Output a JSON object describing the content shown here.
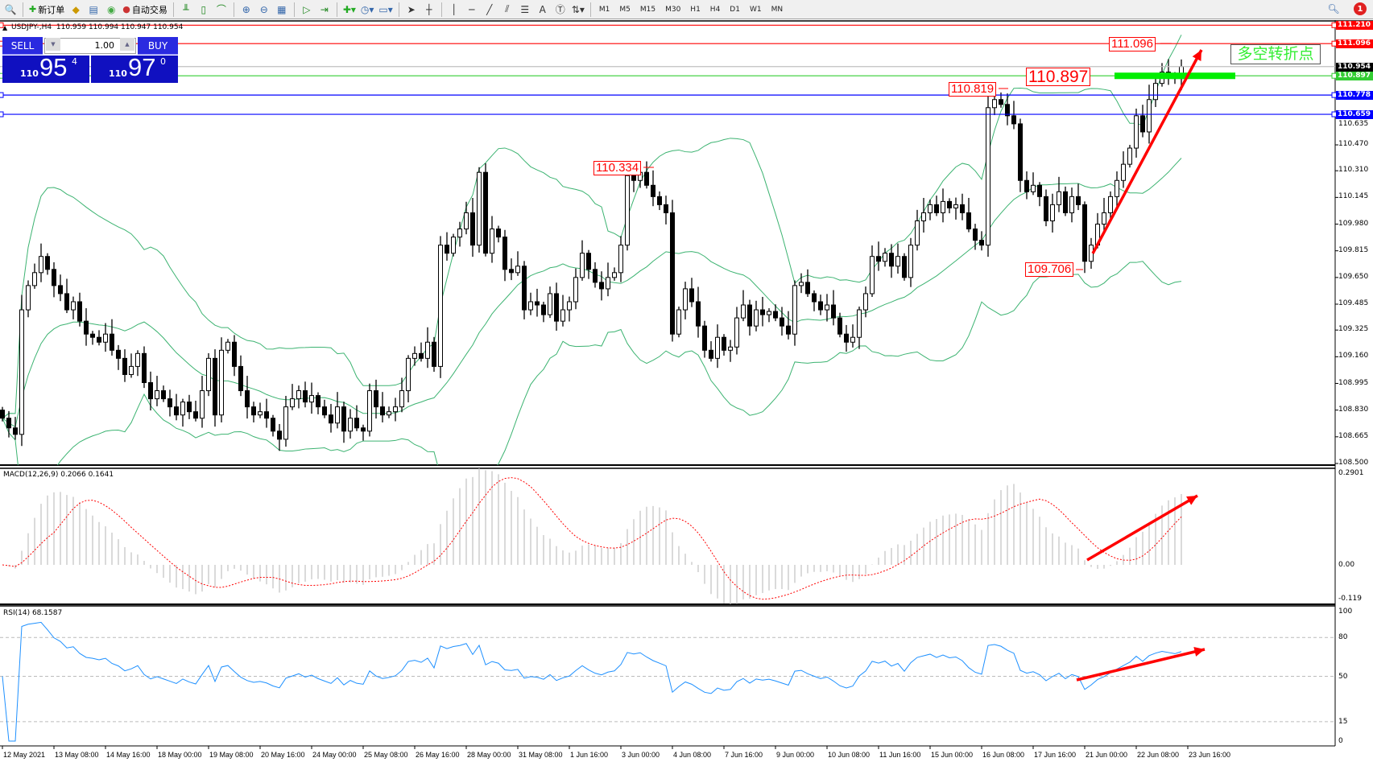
{
  "toolbar": {
    "new_order": "新订单",
    "auto_trading": "自动交易",
    "text_tool": "A",
    "timeframes": [
      "M1",
      "M5",
      "M15",
      "M30",
      "H1",
      "H4",
      "D1",
      "W1",
      "MN"
    ],
    "notification_count": "1"
  },
  "chart": {
    "header": "USDJPY-,H4  110.959 110.994 110.947 110.954"
  },
  "trade_panel": {
    "sell_label": "SELL",
    "buy_label": "BUY",
    "lot": "1.00",
    "sell_big_figure": "110",
    "sell_pips": "95",
    "sell_fraction": "4",
    "buy_big_figure": "110",
    "buy_pips": "97",
    "buy_fraction": "0"
  },
  "annotation": "多空转折点",
  "price_labels": {
    "high_1": "110.334",
    "high_2": "110.819",
    "level": "110.897",
    "high_3": "111.096",
    "low_1": "109.706"
  },
  "indicators": {
    "macd_label": "MACD(12,26,9) 0.2066 0.1641",
    "rsi_label": "RSI(14) 68.1587"
  },
  "chart_data": {
    "type": "candlestick",
    "symbol": "USDJPY-",
    "timeframe": "H4",
    "closes": [
      108.78,
      108.72,
      108.68,
      109.45,
      109.6,
      109.68,
      109.78,
      109.7,
      109.6,
      109.55,
      109.45,
      109.5,
      109.38,
      109.3,
      109.28,
      109.25,
      109.3,
      109.2,
      109.15,
      109.05,
      109.1,
      109.18,
      109.0,
      108.9,
      108.95,
      108.9,
      108.85,
      108.8,
      108.88,
      108.82,
      108.78,
      108.95,
      109.15,
      108.8,
      109.2,
      109.25,
      109.1,
      108.95,
      108.85,
      108.8,
      108.82,
      108.78,
      108.7,
      108.65,
      108.85,
      108.9,
      108.95,
      108.88,
      108.92,
      108.85,
      108.8,
      108.75,
      108.85,
      108.7,
      108.78,
      108.72,
      108.7,
      108.95,
      108.85,
      108.8,
      108.82,
      108.85,
      108.95,
      109.15,
      109.18,
      109.15,
      109.25,
      109.1,
      109.85,
      109.8,
      109.9,
      109.95,
      110.05,
      109.85,
      110.3,
      109.8,
      109.95,
      109.9,
      109.7,
      109.68,
      109.72,
      109.45,
      109.5,
      109.48,
      109.42,
      109.55,
      109.38,
      109.45,
      109.5,
      109.65,
      109.8,
      109.7,
      109.62,
      109.58,
      109.65,
      109.68,
      109.85,
      110.28,
      110.25,
      110.3,
      110.22,
      110.15,
      110.1,
      110.05,
      109.3,
      109.45,
      109.58,
      109.5,
      109.35,
      109.2,
      109.15,
      109.28,
      109.2,
      109.22,
      109.4,
      109.48,
      109.35,
      109.45,
      109.42,
      109.44,
      109.4,
      109.35,
      109.3,
      109.6,
      109.62,
      109.55,
      109.5,
      109.45,
      109.48,
      109.4,
      109.3,
      109.25,
      109.28,
      109.45,
      109.55,
      109.78,
      109.75,
      109.8,
      109.72,
      109.78,
      109.65,
      109.85,
      110.0,
      110.05,
      110.1,
      110.05,
      110.12,
      110.08,
      110.1,
      110.05,
      109.95,
      109.88,
      109.85,
      110.7,
      110.75,
      110.72,
      110.65,
      110.6,
      110.25,
      110.18,
      110.22,
      110.15,
      110.0,
      110.1,
      110.18,
      110.05,
      110.15,
      110.1,
      109.75,
      109.85,
      109.98,
      110.05,
      110.15,
      110.25,
      110.35,
      110.45,
      110.65,
      110.55,
      110.75,
      110.85,
      110.92,
      110.9,
      110.88,
      110.954
    ],
    "x_labels": [
      "12 May 2021",
      "13 May 08:00",
      "14 May 16:00",
      "18 May 00:00",
      "19 May 08:00",
      "20 May 16:00",
      "24 May 00:00",
      "25 May 08:00",
      "26 May 16:00",
      "28 May 00:00",
      "31 May 08:00",
      "1 Jun 16:00",
      "3 Jun 00:00",
      "4 Jun 08:00",
      "7 Jun 16:00",
      "9 Jun 00:00",
      "10 Jun 08:00",
      "11 Jun 16:00",
      "15 Jun 00:00",
      "16 Jun 08:00",
      "17 Jun 16:00",
      "21 Jun 00:00",
      "22 Jun 08:00",
      "23 Jun 16:00"
    ],
    "y_ticks": [
      "110.635",
      "110.470",
      "110.310",
      "110.145",
      "109.980",
      "109.815",
      "109.650",
      "109.485",
      "109.325",
      "109.160",
      "108.995",
      "108.830",
      "108.665",
      "108.500"
    ],
    "ylim": [
      108.5,
      111.25
    ],
    "horizontal_lines": [
      {
        "price": "111.210",
        "color": "#ff0000"
      },
      {
        "price": "111.096",
        "color": "#ff0000"
      },
      {
        "price": "110.954",
        "color": "#000000",
        "line_color": "#c0c0c0"
      },
      {
        "price": "110.897",
        "color": "#32cd32"
      },
      {
        "price": "110.778",
        "color": "#0000ff"
      },
      {
        "price": "110.659",
        "color": "#0000ff"
      }
    ],
    "bollinger_color": "#3cb371",
    "macd": {
      "ticks": [
        "0.2901",
        "0.00",
        "-0.119"
      ],
      "ylim": [
        -0.119,
        0.2901
      ],
      "histogram_color": "#c0c0c0",
      "signal_color": "#ff0000"
    },
    "rsi": {
      "ticks": [
        "100",
        "80",
        "50",
        "15",
        "0"
      ],
      "levels": [
        80,
        50,
        15
      ],
      "color": "#1e90ff"
    },
    "arrow_color": "#ff0000"
  }
}
